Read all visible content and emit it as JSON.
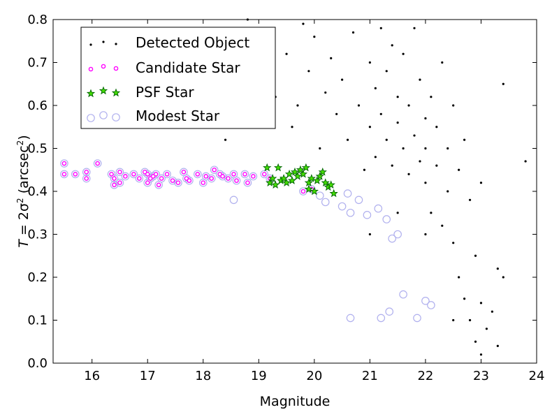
{
  "chart_data": {
    "type": "scatter",
    "xlabel": "Magnitude",
    "ylabel_parts": [
      "T",
      " = 2σ",
      "2",
      " (arcsec",
      "2",
      ")"
    ],
    "xlim": [
      15.3,
      24.0
    ],
    "ylim": [
      0.0,
      0.8
    ],
    "xticks": [
      16,
      17,
      18,
      19,
      20,
      21,
      22,
      23,
      24
    ],
    "yticks": [
      0.0,
      0.1,
      0.2,
      0.3,
      0.4,
      0.5,
      0.6,
      0.7,
      0.8
    ],
    "ytick_labels": [
      "0.0",
      "0.1",
      "0.2",
      "0.3",
      "0.4",
      "0.5",
      "0.6",
      "0.7",
      "0.8"
    ],
    "grid": false,
    "legend_position": "top-left",
    "colors": {
      "detected": "#000000",
      "candidate": "#ff00ff",
      "psf_fill": "#44dd00",
      "psf_edge": "#006400",
      "modest": "#b0b0ee"
    },
    "series": [
      {
        "name": "Detected Object",
        "marker": "dot",
        "points": [
          [
            18.4,
            0.52
          ],
          [
            18.8,
            0.8
          ],
          [
            19.0,
            0.65
          ],
          [
            19.1,
            0.75
          ],
          [
            19.3,
            0.62
          ],
          [
            19.5,
            0.72
          ],
          [
            19.6,
            0.55
          ],
          [
            19.7,
            0.6
          ],
          [
            19.8,
            0.79
          ],
          [
            19.9,
            0.68
          ],
          [
            20.0,
            0.76
          ],
          [
            20.1,
            0.5
          ],
          [
            20.2,
            0.63
          ],
          [
            20.3,
            0.71
          ],
          [
            20.4,
            0.58
          ],
          [
            20.5,
            0.66
          ],
          [
            20.6,
            0.52
          ],
          [
            20.7,
            0.77
          ],
          [
            20.8,
            0.6
          ],
          [
            20.9,
            0.45
          ],
          [
            21.0,
            0.7
          ],
          [
            21.0,
            0.55
          ],
          [
            21.1,
            0.64
          ],
          [
            21.1,
            0.48
          ],
          [
            21.2,
            0.78
          ],
          [
            21.2,
            0.58
          ],
          [
            21.3,
            0.52
          ],
          [
            21.3,
            0.68
          ],
          [
            21.4,
            0.46
          ],
          [
            21.4,
            0.74
          ],
          [
            21.5,
            0.56
          ],
          [
            21.5,
            0.62
          ],
          [
            21.6,
            0.5
          ],
          [
            21.6,
            0.72
          ],
          [
            21.7,
            0.44
          ],
          [
            21.7,
            0.6
          ],
          [
            21.8,
            0.53
          ],
          [
            21.8,
            0.78
          ],
          [
            21.9,
            0.47
          ],
          [
            21.9,
            0.66
          ],
          [
            22.0,
            0.57
          ],
          [
            22.0,
            0.5
          ],
          [
            22.0,
            0.42
          ],
          [
            22.1,
            0.62
          ],
          [
            22.1,
            0.35
          ],
          [
            22.2,
            0.55
          ],
          [
            22.2,
            0.46
          ],
          [
            22.3,
            0.7
          ],
          [
            22.3,
            0.32
          ],
          [
            22.4,
            0.5
          ],
          [
            22.4,
            0.4
          ],
          [
            22.5,
            0.6
          ],
          [
            22.5,
            0.28
          ],
          [
            22.6,
            0.45
          ],
          [
            22.6,
            0.2
          ],
          [
            22.7,
            0.52
          ],
          [
            22.7,
            0.15
          ],
          [
            22.8,
            0.38
          ],
          [
            22.8,
            0.1
          ],
          [
            22.9,
            0.25
          ],
          [
            22.9,
            0.05
          ],
          [
            23.0,
            0.14
          ],
          [
            23.0,
            0.42
          ],
          [
            23.1,
            0.08
          ],
          [
            23.2,
            0.12
          ],
          [
            23.3,
            0.22
          ],
          [
            23.3,
            0.04
          ],
          [
            23.4,
            0.65
          ],
          [
            23.4,
            0.2
          ],
          [
            23.8,
            0.47
          ],
          [
            21.0,
            0.3
          ],
          [
            21.5,
            0.35
          ],
          [
            22.0,
            0.3
          ],
          [
            22.5,
            0.1
          ],
          [
            23.0,
            0.02
          ]
        ]
      },
      {
        "name": "Candidate Star",
        "marker": "circle-small",
        "points": [
          [
            15.5,
            0.465
          ],
          [
            15.5,
            0.44
          ],
          [
            15.7,
            0.44
          ],
          [
            15.9,
            0.445
          ],
          [
            15.9,
            0.43
          ],
          [
            16.1,
            0.465
          ],
          [
            16.35,
            0.44
          ],
          [
            16.4,
            0.43
          ],
          [
            16.4,
            0.415
          ],
          [
            16.5,
            0.445
          ],
          [
            16.5,
            0.42
          ],
          [
            16.6,
            0.435
          ],
          [
            16.75,
            0.44
          ],
          [
            16.85,
            0.43
          ],
          [
            16.95,
            0.445
          ],
          [
            17.0,
            0.42
          ],
          [
            17.0,
            0.44
          ],
          [
            17.05,
            0.43
          ],
          [
            17.1,
            0.435
          ],
          [
            17.15,
            0.44
          ],
          [
            17.2,
            0.415
          ],
          [
            17.25,
            0.43
          ],
          [
            17.35,
            0.44
          ],
          [
            17.45,
            0.425
          ],
          [
            17.55,
            0.42
          ],
          [
            17.65,
            0.445
          ],
          [
            17.7,
            0.43
          ],
          [
            17.75,
            0.425
          ],
          [
            17.9,
            0.44
          ],
          [
            18.0,
            0.42
          ],
          [
            18.05,
            0.435
          ],
          [
            18.15,
            0.43
          ],
          [
            18.2,
            0.45
          ],
          [
            18.3,
            0.44
          ],
          [
            18.35,
            0.435
          ],
          [
            18.45,
            0.43
          ],
          [
            18.55,
            0.44
          ],
          [
            18.6,
            0.425
          ],
          [
            18.75,
            0.44
          ],
          [
            18.8,
            0.42
          ],
          [
            18.9,
            0.435
          ],
          [
            19.1,
            0.44
          ],
          [
            19.2,
            0.43
          ],
          [
            19.8,
            0.4
          ],
          [
            19.95,
            0.405
          ]
        ]
      },
      {
        "name": "PSF Star",
        "marker": "star",
        "points": [
          [
            19.15,
            0.455
          ],
          [
            19.2,
            0.42
          ],
          [
            19.25,
            0.43
          ],
          [
            19.3,
            0.415
          ],
          [
            19.35,
            0.455
          ],
          [
            19.4,
            0.425
          ],
          [
            19.45,
            0.43
          ],
          [
            19.5,
            0.42
          ],
          [
            19.55,
            0.44
          ],
          [
            19.6,
            0.425
          ],
          [
            19.65,
            0.445
          ],
          [
            19.7,
            0.435
          ],
          [
            19.75,
            0.45
          ],
          [
            19.8,
            0.44
          ],
          [
            19.85,
            0.455
          ],
          [
            19.9,
            0.42
          ],
          [
            19.9,
            0.405
          ],
          [
            19.95,
            0.43
          ],
          [
            20.0,
            0.4
          ],
          [
            20.05,
            0.425
          ],
          [
            20.1,
            0.435
          ],
          [
            20.15,
            0.445
          ],
          [
            20.2,
            0.42
          ],
          [
            20.25,
            0.41
          ],
          [
            20.3,
            0.415
          ],
          [
            20.35,
            0.395
          ]
        ]
      },
      {
        "name": "Modest Star",
        "marker": "circle-large",
        "points": [
          [
            15.5,
            0.465
          ],
          [
            15.5,
            0.44
          ],
          [
            15.7,
            0.44
          ],
          [
            15.9,
            0.445
          ],
          [
            15.9,
            0.43
          ],
          [
            16.1,
            0.465
          ],
          [
            16.35,
            0.44
          ],
          [
            16.4,
            0.43
          ],
          [
            16.4,
            0.415
          ],
          [
            16.5,
            0.445
          ],
          [
            16.5,
            0.42
          ],
          [
            16.6,
            0.435
          ],
          [
            16.75,
            0.44
          ],
          [
            16.85,
            0.43
          ],
          [
            16.95,
            0.445
          ],
          [
            17.0,
            0.42
          ],
          [
            17.0,
            0.44
          ],
          [
            17.05,
            0.43
          ],
          [
            17.1,
            0.435
          ],
          [
            17.15,
            0.44
          ],
          [
            17.2,
            0.415
          ],
          [
            17.25,
            0.43
          ],
          [
            17.35,
            0.44
          ],
          [
            17.45,
            0.425
          ],
          [
            17.55,
            0.42
          ],
          [
            17.65,
            0.445
          ],
          [
            17.7,
            0.43
          ],
          [
            17.75,
            0.425
          ],
          [
            17.9,
            0.44
          ],
          [
            18.0,
            0.42
          ],
          [
            18.05,
            0.435
          ],
          [
            18.15,
            0.43
          ],
          [
            18.2,
            0.45
          ],
          [
            18.3,
            0.44
          ],
          [
            18.35,
            0.435
          ],
          [
            18.45,
            0.43
          ],
          [
            18.55,
            0.44
          ],
          [
            18.6,
            0.425
          ],
          [
            18.75,
            0.44
          ],
          [
            18.8,
            0.42
          ],
          [
            18.9,
            0.435
          ],
          [
            19.1,
            0.44
          ],
          [
            19.2,
            0.43
          ],
          [
            19.8,
            0.4
          ],
          [
            19.95,
            0.405
          ],
          [
            18.55,
            0.38
          ],
          [
            20.1,
            0.39
          ],
          [
            20.2,
            0.375
          ],
          [
            20.5,
            0.365
          ],
          [
            20.6,
            0.395
          ],
          [
            20.65,
            0.35
          ],
          [
            20.8,
            0.38
          ],
          [
            20.95,
            0.345
          ],
          [
            21.15,
            0.36
          ],
          [
            21.3,
            0.335
          ],
          [
            21.4,
            0.29
          ],
          [
            21.5,
            0.3
          ],
          [
            20.65,
            0.105
          ],
          [
            21.2,
            0.105
          ],
          [
            21.35,
            0.12
          ],
          [
            21.6,
            0.16
          ],
          [
            21.85,
            0.105
          ],
          [
            22.0,
            0.145
          ],
          [
            22.1,
            0.135
          ]
        ]
      }
    ]
  }
}
